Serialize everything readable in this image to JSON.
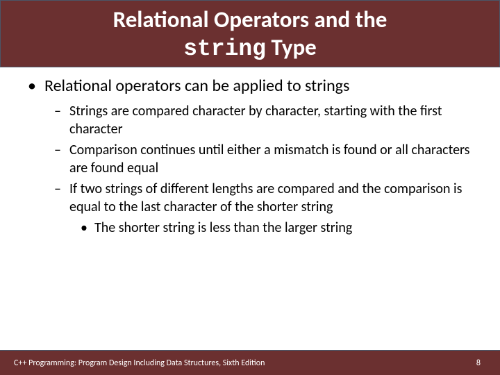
{
  "header": {
    "line1": "Relational Operators and the",
    "code": "string",
    "line2_rest": " Type"
  },
  "bullets": {
    "l1": "Relational operators can be applied to strings",
    "l2a": "Strings are compared character by character, starting with the first character",
    "l2b": "Comparison continues until either a mismatch is found or all characters are found equal",
    "l2c": "If two strings of different lengths are compared and the comparison is equal to the last character of the shorter string",
    "l3a": "The shorter string is less than the larger string"
  },
  "footer": {
    "text": "C++ Programming: Program Design Including Data Structures, Sixth Edition",
    "page": "8"
  },
  "colors": {
    "header_bg": "#6b3030",
    "title_color": "#ffffff",
    "body_color": "#000000",
    "footer_bg": "#6b3030",
    "footer_color": "#ffffff",
    "border_color": "#4a5668"
  },
  "typography": {
    "title_fontsize": 33,
    "l1_fontsize": 24,
    "l2_fontsize": 20,
    "l3_fontsize": 20,
    "footer_fontsize": 12,
    "title_font": "Calibri",
    "code_font": "Courier New"
  }
}
